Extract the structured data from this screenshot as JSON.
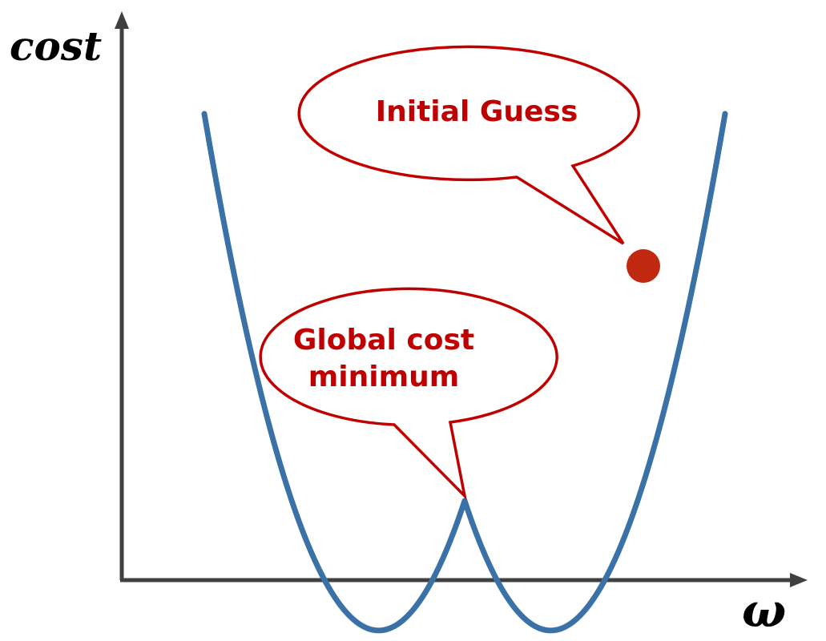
{
  "diagram": {
    "y_axis_label": "cost",
    "x_axis_label": "ω",
    "callouts": {
      "initial_guess": {
        "label": "Initial Guess"
      },
      "global_minimum": {
        "line1": "Global cost",
        "line2": "minimum"
      }
    },
    "colors": {
      "curve": "#3a72a8",
      "callout_border": "#c00000",
      "callout_text": "#c00000",
      "marker": "#c0280f",
      "axis": "#404040"
    }
  }
}
